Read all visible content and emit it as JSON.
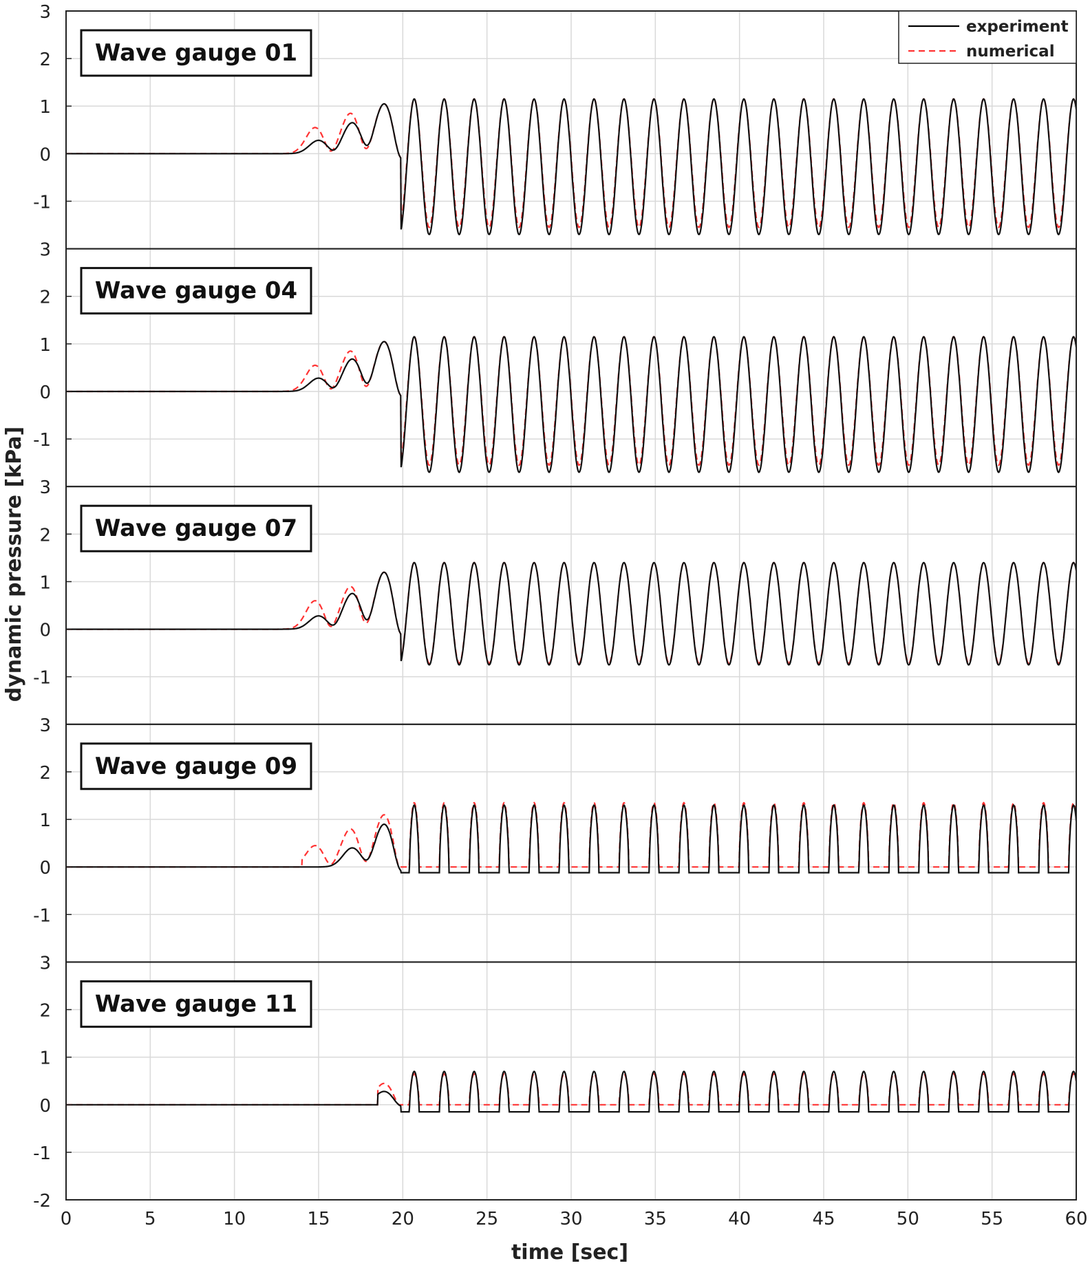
{
  "chart_data": {
    "type": "line",
    "ylabel": "dynamic pressure [kPa]",
    "xlabel": "time [sec]",
    "xlim": [
      0,
      60
    ],
    "x_ticks": [
      0,
      5,
      10,
      15,
      20,
      25,
      30,
      35,
      40,
      45,
      50,
      55,
      60
    ],
    "grid": true,
    "legend": {
      "placement": "top-right of first panel",
      "entries": [
        {
          "name": "experiment",
          "style": "solid",
          "color": "#000000"
        },
        {
          "name": "numerical",
          "style": "dashed",
          "color": "#ff3333"
        }
      ]
    },
    "panels": [
      {
        "title": "Wave gauge 01",
        "ylim": [
          -2,
          3
        ],
        "y_ticks": [
          -1,
          0,
          1,
          2,
          3
        ],
        "trough_mode": "deep",
        "series": [
          {
            "name": "experiment",
            "onset_time": 12,
            "wave_period": 1.78,
            "peak_level": 1.15,
            "trough_level": -1.7,
            "onset_wave_peaks": [
              {
                "t": 15.0,
                "v": 0.28
              },
              {
                "t": 17.0,
                "v": 0.65
              },
              {
                "t": 18.9,
                "v": 1.05
              }
            ]
          },
          {
            "name": "numerical",
            "onset_time": 12,
            "wave_period": 1.78,
            "peak_level": 1.15,
            "trough_level": -1.55,
            "onset_wave_peaks": [
              {
                "t": 14.8,
                "v": 0.55
              },
              {
                "t": 16.9,
                "v": 0.85
              },
              {
                "t": 18.9,
                "v": 1.05
              }
            ]
          }
        ]
      },
      {
        "title": "Wave gauge 04",
        "ylim": [
          -2,
          3
        ],
        "y_ticks": [
          -1,
          0,
          1,
          2,
          3
        ],
        "trough_mode": "deep",
        "series": [
          {
            "name": "experiment",
            "onset_time": 12,
            "wave_period": 1.78,
            "peak_level": 1.15,
            "trough_level": -1.7,
            "onset_wave_peaks": [
              {
                "t": 15.0,
                "v": 0.28
              },
              {
                "t": 17.0,
                "v": 0.68
              },
              {
                "t": 18.9,
                "v": 1.05
              }
            ]
          },
          {
            "name": "numerical",
            "onset_time": 12,
            "wave_period": 1.78,
            "peak_level": 1.15,
            "trough_level": -1.55,
            "onset_wave_peaks": [
              {
                "t": 14.8,
                "v": 0.55
              },
              {
                "t": 16.9,
                "v": 0.85
              },
              {
                "t": 18.9,
                "v": 1.05
              }
            ]
          }
        ]
      },
      {
        "title": "Wave gauge 07",
        "ylim": [
          -2,
          3
        ],
        "y_ticks": [
          -1,
          0,
          1,
          2,
          3
        ],
        "trough_mode": "clipped",
        "series": [
          {
            "name": "experiment",
            "onset_time": 12,
            "wave_period": 1.78,
            "peak_level": 1.4,
            "trough_level": -0.75,
            "onset_wave_peaks": [
              {
                "t": 15.0,
                "v": 0.28
              },
              {
                "t": 17.0,
                "v": 0.75
              },
              {
                "t": 18.9,
                "v": 1.2
              }
            ]
          },
          {
            "name": "numerical",
            "onset_time": 12,
            "wave_period": 1.78,
            "peak_level": 1.4,
            "trough_level": -0.72,
            "onset_wave_peaks": [
              {
                "t": 14.8,
                "v": 0.6
              },
              {
                "t": 16.9,
                "v": 0.9
              },
              {
                "t": 18.9,
                "v": 1.2
              }
            ]
          }
        ]
      },
      {
        "title": "Wave gauge 09",
        "ylim": [
          -2,
          3
        ],
        "y_ticks": [
          -1,
          0,
          1,
          2,
          3
        ],
        "trough_mode": "pulse",
        "series": [
          {
            "name": "experiment",
            "onset_time": 15,
            "wave_period": 1.78,
            "peak_level": 1.3,
            "trough_level": -0.12,
            "onset_wave_peaks": [
              {
                "t": 17.0,
                "v": 0.4
              },
              {
                "t": 18.9,
                "v": 0.9
              }
            ]
          },
          {
            "name": "numerical",
            "onset_time": 14,
            "wave_period": 1.78,
            "peak_level": 1.35,
            "trough_level": 0.0,
            "onset_wave_peaks": [
              {
                "t": 14.8,
                "v": 0.45
              },
              {
                "t": 16.9,
                "v": 0.8
              },
              {
                "t": 18.9,
                "v": 1.1
              }
            ]
          }
        ]
      },
      {
        "title": "Wave gauge 11",
        "ylim": [
          -2,
          3
        ],
        "y_ticks": [
          -2,
          -1,
          0,
          1,
          2,
          3
        ],
        "trough_mode": "pulse",
        "series": [
          {
            "name": "experiment",
            "onset_time": 18.5,
            "wave_period": 1.78,
            "peak_level": 0.7,
            "trough_level": -0.15,
            "onset_wave_peaks": [
              {
                "t": 18.9,
                "v": 0.28
              }
            ]
          },
          {
            "name": "numerical",
            "onset_time": 18.5,
            "wave_period": 1.78,
            "peak_level": 0.65,
            "trough_level": 0.0,
            "onset_wave_peaks": [
              {
                "t": 18.9,
                "v": 0.45
              }
            ]
          }
        ]
      }
    ]
  }
}
